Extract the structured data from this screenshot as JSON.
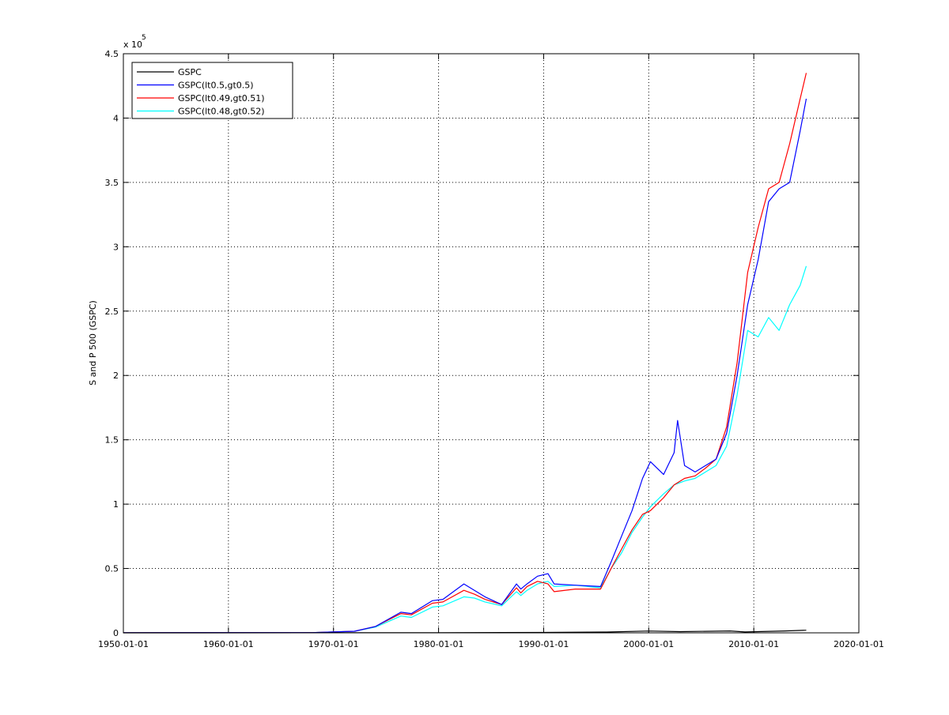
{
  "chart_data": {
    "type": "line",
    "title": "",
    "xlabel": "",
    "ylabel": "S and P 500 (GSPC)",
    "y_exponent_label": "x 10",
    "y_exponent_power": "5",
    "xlim": [
      "1950-01-01",
      "2020-01-01"
    ],
    "ylim": [
      0,
      4.5
    ],
    "x_ticks": [
      "1950-01-01",
      "1960-01-01",
      "1970-01-01",
      "1980-01-01",
      "1990-01-01",
      "2000-01-01",
      "2010-01-01",
      "2020-01-01"
    ],
    "y_ticks": [
      "0",
      "0.5",
      "1",
      "1.5",
      "2",
      "2.5",
      "3",
      "3.5",
      "4",
      "4.5"
    ],
    "grid": true,
    "legend_position": "top-left",
    "series": [
      {
        "name": "GSPC",
        "color": "#000000",
        "points": [
          [
            "1950-01-01",
            0.0002
          ],
          [
            "1970-01-01",
            0.0009
          ],
          [
            "1980-01-01",
            0.001
          ],
          [
            "1990-01-01",
            0.003
          ],
          [
            "1996-01-01",
            0.006
          ],
          [
            "2000-01-01",
            0.014
          ],
          [
            "2003-01-01",
            0.009
          ],
          [
            "2007-10-01",
            0.015
          ],
          [
            "2009-03-01",
            0.007
          ],
          [
            "2013-01-01",
            0.015
          ],
          [
            "2014-12-31",
            0.02
          ]
        ]
      },
      {
        "name": "GSPC(lt0.5,gt0.5)",
        "color": "#0000ff",
        "points": [
          [
            "1950-01-01",
            0.001
          ],
          [
            "1968-01-01",
            0.002
          ],
          [
            "1970-01-01",
            0.007
          ],
          [
            "1972-01-01",
            0.012
          ],
          [
            "1974-01-01",
            0.05
          ],
          [
            "1976-06-01",
            0.16
          ],
          [
            "1977-06-01",
            0.15
          ],
          [
            "1979-06-01",
            0.25
          ],
          [
            "1980-06-01",
            0.26
          ],
          [
            "1982-06-01",
            0.38
          ],
          [
            "1983-06-01",
            0.33
          ],
          [
            "1984-06-01",
            0.28
          ],
          [
            "1986-01-01",
            0.22
          ],
          [
            "1987-06-01",
            0.38
          ],
          [
            "1987-11-01",
            0.34
          ],
          [
            "1988-06-01",
            0.38
          ],
          [
            "1989-06-01",
            0.44
          ],
          [
            "1990-06-01",
            0.46
          ],
          [
            "1991-01-01",
            0.38
          ],
          [
            "1993-01-01",
            0.37
          ],
          [
            "1995-06-01",
            0.36
          ],
          [
            "1996-06-01",
            0.55
          ],
          [
            "1997-06-01",
            0.75
          ],
          [
            "1998-06-01",
            0.95
          ],
          [
            "1999-06-01",
            1.2
          ],
          [
            "2000-03-01",
            1.33
          ],
          [
            "2001-06-01",
            1.23
          ],
          [
            "2002-06-01",
            1.4
          ],
          [
            "2002-10-01",
            1.65
          ],
          [
            "2003-06-01",
            1.3
          ],
          [
            "2004-06-01",
            1.25
          ],
          [
            "2005-06-01",
            1.3
          ],
          [
            "2006-06-01",
            1.35
          ],
          [
            "2007-06-01",
            1.55
          ],
          [
            "2008-06-01",
            2.0
          ],
          [
            "2009-06-01",
            2.55
          ],
          [
            "2010-06-01",
            2.9
          ],
          [
            "2011-06-01",
            3.35
          ],
          [
            "2012-06-01",
            3.45
          ],
          [
            "2013-06-01",
            3.5
          ],
          [
            "2014-06-01",
            3.9
          ],
          [
            "2014-12-31",
            4.15
          ]
        ]
      },
      {
        "name": "GSPC(lt0.49,gt0.51)",
        "color": "#ff0000",
        "points": [
          [
            "1950-01-01",
            0.001
          ],
          [
            "1968-01-01",
            0.002
          ],
          [
            "1970-01-01",
            0.007
          ],
          [
            "1972-01-01",
            0.012
          ],
          [
            "1974-01-01",
            0.05
          ],
          [
            "1976-06-01",
            0.15
          ],
          [
            "1977-06-01",
            0.14
          ],
          [
            "1979-06-01",
            0.23
          ],
          [
            "1980-06-01",
            0.24
          ],
          [
            "1982-06-01",
            0.33
          ],
          [
            "1983-06-01",
            0.3
          ],
          [
            "1984-06-01",
            0.26
          ],
          [
            "1986-01-01",
            0.22
          ],
          [
            "1987-06-01",
            0.35
          ],
          [
            "1987-11-01",
            0.31
          ],
          [
            "1988-06-01",
            0.36
          ],
          [
            "1989-06-01",
            0.4
          ],
          [
            "1990-06-01",
            0.38
          ],
          [
            "1991-01-01",
            0.32
          ],
          [
            "1993-01-01",
            0.34
          ],
          [
            "1995-06-01",
            0.34
          ],
          [
            "1996-06-01",
            0.5
          ],
          [
            "1997-06-01",
            0.65
          ],
          [
            "1998-06-01",
            0.8
          ],
          [
            "1999-06-01",
            0.92
          ],
          [
            "2000-03-01",
            0.95
          ],
          [
            "2001-06-01",
            1.05
          ],
          [
            "2002-06-01",
            1.15
          ],
          [
            "2003-06-01",
            1.2
          ],
          [
            "2004-06-01",
            1.22
          ],
          [
            "2005-06-01",
            1.28
          ],
          [
            "2006-06-01",
            1.35
          ],
          [
            "2007-06-01",
            1.6
          ],
          [
            "2008-06-01",
            2.1
          ],
          [
            "2009-06-01",
            2.8
          ],
          [
            "2010-06-01",
            3.15
          ],
          [
            "2011-06-01",
            3.45
          ],
          [
            "2012-06-01",
            3.5
          ],
          [
            "2013-06-01",
            3.8
          ],
          [
            "2014-06-01",
            4.15
          ],
          [
            "2014-12-31",
            4.35
          ]
        ]
      },
      {
        "name": "GSPC(lt0.48,gt0.52)",
        "color": "#00ffff",
        "points": [
          [
            "1950-01-01",
            0.001
          ],
          [
            "1968-01-01",
            0.002
          ],
          [
            "1970-01-01",
            0.007
          ],
          [
            "1972-01-01",
            0.012
          ],
          [
            "1974-01-01",
            0.045
          ],
          [
            "1976-06-01",
            0.13
          ],
          [
            "1977-06-01",
            0.12
          ],
          [
            "1979-06-01",
            0.2
          ],
          [
            "1980-06-01",
            0.21
          ],
          [
            "1982-06-01",
            0.28
          ],
          [
            "1983-06-01",
            0.27
          ],
          [
            "1984-06-01",
            0.24
          ],
          [
            "1986-01-01",
            0.21
          ],
          [
            "1987-06-01",
            0.32
          ],
          [
            "1987-11-01",
            0.29
          ],
          [
            "1988-06-01",
            0.33
          ],
          [
            "1989-06-01",
            0.38
          ],
          [
            "1990-06-01",
            0.4
          ],
          [
            "1991-01-01",
            0.36
          ],
          [
            "1993-01-01",
            0.37
          ],
          [
            "1995-06-01",
            0.35
          ],
          [
            "1996-06-01",
            0.5
          ],
          [
            "1997-06-01",
            0.62
          ],
          [
            "1998-06-01",
            0.78
          ],
          [
            "1999-06-01",
            0.9
          ],
          [
            "2000-03-01",
            0.98
          ],
          [
            "2001-06-01",
            1.08
          ],
          [
            "2002-06-01",
            1.15
          ],
          [
            "2003-06-01",
            1.18
          ],
          [
            "2004-06-01",
            1.2
          ],
          [
            "2005-06-01",
            1.25
          ],
          [
            "2006-06-01",
            1.3
          ],
          [
            "2007-06-01",
            1.45
          ],
          [
            "2008-06-01",
            1.85
          ],
          [
            "2009-06-01",
            2.35
          ],
          [
            "2010-06-01",
            2.3
          ],
          [
            "2011-06-01",
            2.45
          ],
          [
            "2012-06-01",
            2.35
          ],
          [
            "2013-06-01",
            2.55
          ],
          [
            "2014-06-01",
            2.7
          ],
          [
            "2014-12-31",
            2.85
          ]
        ]
      }
    ]
  }
}
